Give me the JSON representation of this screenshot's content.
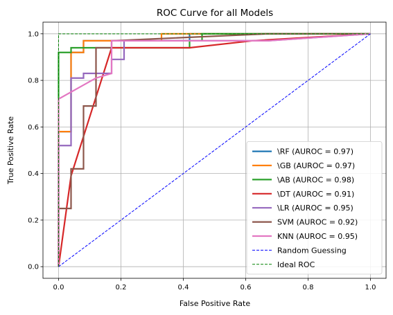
{
  "chart_data": {
    "type": "line",
    "title": "ROC Curve for all Models",
    "xlabel": "False Positive Rate",
    "ylabel": "True Positive Rate",
    "xlim": [
      -0.05,
      1.05
    ],
    "ylim": [
      -0.05,
      1.05
    ],
    "xticks": [
      0.0,
      0.2,
      0.4,
      0.6,
      0.8,
      1.0
    ],
    "yticks": [
      0.0,
      0.2,
      0.4,
      0.6,
      0.8,
      1.0
    ],
    "xtick_labels": [
      "0.0",
      "0.2",
      "0.4",
      "0.6",
      "0.8",
      "1.0"
    ],
    "ytick_labels": [
      "0.0",
      "0.2",
      "0.4",
      "0.6",
      "0.8",
      "1.0"
    ],
    "grid": true,
    "legend_position": "lower-right",
    "series": [
      {
        "name": "\\RF (AUROC = 0.97)",
        "color": "#1f77b4",
        "style": "solid",
        "x": [
          0,
          0,
          0.04,
          0.04,
          0.08,
          0.08,
          0.42,
          0.42,
          1.0
        ],
        "y": [
          0,
          0.58,
          0.58,
          0.92,
          0.92,
          0.97,
          0.97,
          1.0,
          1.0
        ]
      },
      {
        "name": "\\GB (AUROC = 0.97)",
        "color": "#ff7f0e",
        "style": "solid",
        "x": [
          0,
          0,
          0.04,
          0.04,
          0.08,
          0.08,
          0.33,
          0.33,
          1.0
        ],
        "y": [
          0,
          0.58,
          0.58,
          0.92,
          0.92,
          0.97,
          0.97,
          1.0,
          1.0
        ]
      },
      {
        "name": "\\AB (AUROC = 0.98)",
        "color": "#2ca02c",
        "style": "solid",
        "x": [
          0,
          0,
          0.04,
          0.04,
          0.42,
          0.42,
          0.46,
          0.46,
          1.0
        ],
        "y": [
          0,
          0.92,
          0.92,
          0.94,
          0.94,
          0.97,
          0.97,
          1.0,
          1.0
        ]
      },
      {
        "name": "\\DT (AUROC = 0.91)",
        "color": "#d62728",
        "style": "solid",
        "x": [
          0,
          0.04,
          0.17,
          0.42,
          0.62,
          1.0
        ],
        "y": [
          0,
          0.39,
          0.94,
          0.94,
          0.97,
          1.0
        ]
      },
      {
        "name": "\\LR (AUROC = 0.95)",
        "color": "#9467bd",
        "style": "solid",
        "x": [
          0,
          0,
          0.04,
          0.04,
          0.08,
          0.08,
          0.17,
          0.17,
          0.21,
          0.21,
          0.67,
          1.0
        ],
        "y": [
          0,
          0.52,
          0.52,
          0.81,
          0.81,
          0.83,
          0.83,
          0.89,
          0.89,
          0.97,
          0.97,
          1.0
        ]
      },
      {
        "name": "SVM (AUROC = 0.92)",
        "color": "#8c564b",
        "style": "solid",
        "x": [
          0,
          0,
          0.04,
          0.04,
          0.08,
          0.08,
          0.12,
          0.12,
          0.17,
          0.17,
          0.67,
          1.0
        ],
        "y": [
          0,
          0.25,
          0.25,
          0.42,
          0.42,
          0.69,
          0.69,
          0.94,
          0.94,
          0.97,
          1.0,
          1.0
        ]
      },
      {
        "name": "KNN (AUROC = 0.95)",
        "color": "#e377c2",
        "style": "solid",
        "x": [
          0,
          0,
          0.08,
          0.12,
          0.17,
          0.17,
          0.67,
          1.0
        ],
        "y": [
          0,
          0.72,
          0.78,
          0.81,
          0.83,
          0.97,
          0.97,
          1.0
        ]
      },
      {
        "name": "Random Guessing",
        "color": "#0000ff",
        "style": "dashed",
        "x": [
          0,
          1
        ],
        "y": [
          0,
          1
        ]
      },
      {
        "name": "Ideal ROC",
        "color": "#008000",
        "style": "dashed",
        "x": [
          0,
          0,
          1
        ],
        "y": [
          0,
          1,
          1
        ]
      }
    ]
  }
}
